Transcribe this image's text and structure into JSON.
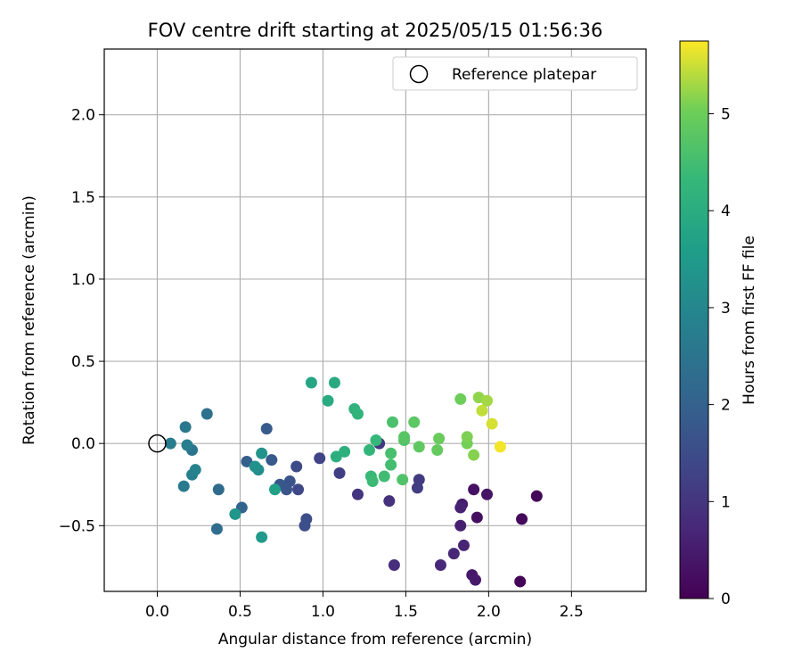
{
  "chart_data": {
    "type": "scatter",
    "title": "FOV centre drift starting at 2025/05/15 01:56:36",
    "xlabel": "Angular distance from reference (arcmin)",
    "ylabel": "Rotation from reference (arcmin)",
    "xlim": [
      -0.32,
      2.95
    ],
    "ylim": [
      -0.9,
      2.4
    ],
    "xticks": [
      0.0,
      0.5,
      1.0,
      1.5,
      2.0,
      2.5
    ],
    "xtick_labels": [
      "0.0",
      "0.5",
      "1.0",
      "1.5",
      "2.0",
      "2.5"
    ],
    "yticks": [
      -0.5,
      0.0,
      0.5,
      1.0,
      1.5,
      2.0
    ],
    "ytick_labels": [
      "−0.5",
      "0.0",
      "0.5",
      "1.0",
      "1.5",
      "2.0"
    ],
    "grid": true,
    "legend": {
      "placement": "upper right",
      "entries": [
        "Reference platepar"
      ]
    },
    "reference_point": {
      "x": 0.0,
      "y": 0.0
    },
    "colorbar": {
      "label": "Hours from first FF file",
      "colormap": "viridis",
      "range": [
        0,
        5.75
      ],
      "ticks": [
        0,
        1,
        2,
        3,
        4,
        5
      ],
      "tick_labels": [
        "0",
        "1",
        "2",
        "3",
        "4",
        "5"
      ]
    },
    "points": [
      {
        "x": 2.19,
        "y": -0.84,
        "h": 0.05
      },
      {
        "x": 2.29,
        "y": -0.32,
        "h": 0.1
      },
      {
        "x": 2.2,
        "y": -0.46,
        "h": 0.15
      },
      {
        "x": 1.93,
        "y": -0.45,
        "h": 0.25
      },
      {
        "x": 1.91,
        "y": -0.28,
        "h": 0.3
      },
      {
        "x": 1.99,
        "y": -0.31,
        "h": 0.35
      },
      {
        "x": 1.9,
        "y": -0.8,
        "h": 0.4
      },
      {
        "x": 1.92,
        "y": -0.83,
        "h": 0.45
      },
      {
        "x": 1.84,
        "y": -0.37,
        "h": 0.5
      },
      {
        "x": 1.83,
        "y": -0.5,
        "h": 0.55
      },
      {
        "x": 1.83,
        "y": -0.39,
        "h": 0.6
      },
      {
        "x": 1.85,
        "y": -0.62,
        "h": 0.65
      },
      {
        "x": 1.79,
        "y": -0.67,
        "h": 0.7
      },
      {
        "x": 1.71,
        "y": -0.74,
        "h": 0.75
      },
      {
        "x": 1.43,
        "y": -0.74,
        "h": 0.85
      },
      {
        "x": 1.4,
        "y": -0.35,
        "h": 0.9
      },
      {
        "x": 1.21,
        "y": -0.31,
        "h": 1.0
      },
      {
        "x": 1.34,
        "y": 0.0,
        "h": 1.05
      },
      {
        "x": 1.58,
        "y": -0.22,
        "h": 1.1
      },
      {
        "x": 1.57,
        "y": -0.27,
        "h": 1.15
      },
      {
        "x": 1.1,
        "y": -0.18,
        "h": 1.2
      },
      {
        "x": 0.98,
        "y": -0.09,
        "h": 1.3
      },
      {
        "x": 0.85,
        "y": -0.28,
        "h": 1.4
      },
      {
        "x": 0.84,
        "y": -0.14,
        "h": 1.45
      },
      {
        "x": 0.9,
        "y": -0.46,
        "h": 1.5
      },
      {
        "x": 0.89,
        "y": -0.5,
        "h": 1.55
      },
      {
        "x": 0.8,
        "y": -0.23,
        "h": 1.65
      },
      {
        "x": 0.78,
        "y": -0.28,
        "h": 1.7
      },
      {
        "x": 0.74,
        "y": -0.25,
        "h": 1.75
      },
      {
        "x": 0.69,
        "y": -0.1,
        "h": 1.8
      },
      {
        "x": 0.66,
        "y": 0.09,
        "h": 1.85
      },
      {
        "x": 0.54,
        "y": -0.11,
        "h": 1.95
      },
      {
        "x": 0.51,
        "y": -0.39,
        "h": 2.05
      },
      {
        "x": 0.37,
        "y": -0.28,
        "h": 2.25
      },
      {
        "x": 0.36,
        "y": -0.52,
        "h": 2.3
      },
      {
        "x": 0.3,
        "y": 0.18,
        "h": 2.4
      },
      {
        "x": 0.21,
        "y": -0.04,
        "h": 2.5
      },
      {
        "x": 0.17,
        "y": 0.1,
        "h": 2.6
      },
      {
        "x": 0.16,
        "y": -0.26,
        "h": 2.65
      },
      {
        "x": 0.08,
        "y": 0.0,
        "h": 2.7
      },
      {
        "x": 0.18,
        "y": -0.01,
        "h": 2.75
      },
      {
        "x": 0.21,
        "y": -0.19,
        "h": 2.8
      },
      {
        "x": 0.23,
        "y": -0.16,
        "h": 2.9
      },
      {
        "x": 0.61,
        "y": -0.16,
        "h": 3.15
      },
      {
        "x": 0.59,
        "y": -0.14,
        "h": 3.25
      },
      {
        "x": 0.63,
        "y": -0.06,
        "h": 3.3
      },
      {
        "x": 0.47,
        "y": -0.43,
        "h": 3.4
      },
      {
        "x": 0.63,
        "y": -0.57,
        "h": 3.5
      },
      {
        "x": 0.71,
        "y": -0.28,
        "h": 3.65
      },
      {
        "x": 0.93,
        "y": 0.37,
        "h": 3.8
      },
      {
        "x": 1.07,
        "y": 0.37,
        "h": 3.9
      },
      {
        "x": 1.03,
        "y": 0.26,
        "h": 3.95
      },
      {
        "x": 1.08,
        "y": -0.08,
        "h": 4.05
      },
      {
        "x": 1.13,
        "y": -0.05,
        "h": 4.1
      },
      {
        "x": 1.19,
        "y": 0.21,
        "h": 4.15
      },
      {
        "x": 1.21,
        "y": 0.18,
        "h": 4.2
      },
      {
        "x": 1.28,
        "y": -0.04,
        "h": 4.25
      },
      {
        "x": 1.32,
        "y": 0.02,
        "h": 4.3
      },
      {
        "x": 1.29,
        "y": -0.2,
        "h": 4.35
      },
      {
        "x": 1.3,
        "y": -0.23,
        "h": 4.4
      },
      {
        "x": 1.37,
        "y": -0.2,
        "h": 4.45
      },
      {
        "x": 1.41,
        "y": -0.13,
        "h": 4.5
      },
      {
        "x": 1.41,
        "y": -0.06,
        "h": 4.55
      },
      {
        "x": 1.42,
        "y": 0.13,
        "h": 4.6
      },
      {
        "x": 1.48,
        "y": -0.22,
        "h": 4.65
      },
      {
        "x": 1.49,
        "y": 0.02,
        "h": 4.7
      },
      {
        "x": 1.49,
        "y": 0.04,
        "h": 4.75
      },
      {
        "x": 1.55,
        "y": 0.13,
        "h": 4.8
      },
      {
        "x": 1.58,
        "y": -0.02,
        "h": 4.85
      },
      {
        "x": 1.69,
        "y": -0.04,
        "h": 4.9
      },
      {
        "x": 1.7,
        "y": 0.03,
        "h": 4.95
      },
      {
        "x": 1.83,
        "y": 0.27,
        "h": 5.0
      },
      {
        "x": 1.87,
        "y": 0.0,
        "h": 5.05
      },
      {
        "x": 1.87,
        "y": 0.04,
        "h": 5.1
      },
      {
        "x": 1.91,
        "y": -0.07,
        "h": 5.15
      },
      {
        "x": 1.94,
        "y": 0.28,
        "h": 5.2
      },
      {
        "x": 1.99,
        "y": 0.26,
        "h": 5.3
      },
      {
        "x": 1.96,
        "y": 0.2,
        "h": 5.45
      },
      {
        "x": 2.02,
        "y": 0.12,
        "h": 5.55
      },
      {
        "x": 2.07,
        "y": -0.02,
        "h": 5.7
      }
    ]
  }
}
